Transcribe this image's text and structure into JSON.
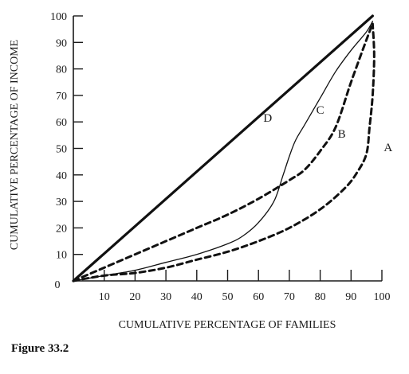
{
  "caption": "Figure 33.2",
  "chart_data": {
    "type": "line",
    "xlabel": "CUMULATIVE PERCENTAGE OF FAMILIES",
    "ylabel": "CUMULATIVE PERCENTAGE OF INCOME",
    "xlim": [
      0,
      100
    ],
    "ylim": [
      0,
      100
    ],
    "x_ticks": [
      10,
      20,
      30,
      40,
      50,
      60,
      70,
      80,
      90,
      100
    ],
    "y_ticks": [
      10,
      20,
      30,
      40,
      50,
      60,
      70,
      80,
      90,
      100
    ],
    "origin_label": "0",
    "grid": false,
    "series": [
      {
        "name": "D",
        "style": "solid-thick",
        "points": [
          [
            0,
            0
          ],
          [
            97,
            100
          ]
        ]
      },
      {
        "name": "C",
        "style": "solid-thin",
        "points": [
          [
            0,
            0
          ],
          [
            10,
            2
          ],
          [
            20,
            4
          ],
          [
            30,
            7
          ],
          [
            40,
            10
          ],
          [
            50,
            14
          ],
          [
            55,
            17
          ],
          [
            60,
            22
          ],
          [
            65,
            30
          ],
          [
            68,
            40
          ],
          [
            70,
            47
          ],
          [
            72,
            53
          ],
          [
            75,
            59
          ],
          [
            80,
            69
          ],
          [
            85,
            79
          ],
          [
            90,
            87
          ],
          [
            95,
            94
          ],
          [
            97,
            98
          ]
        ]
      },
      {
        "name": "B",
        "style": "dashed",
        "points": [
          [
            0,
            0
          ],
          [
            10,
            5
          ],
          [
            20,
            10
          ],
          [
            30,
            15
          ],
          [
            40,
            20
          ],
          [
            50,
            25
          ],
          [
            60,
            31
          ],
          [
            70,
            38
          ],
          [
            75,
            42
          ],
          [
            80,
            49
          ],
          [
            85,
            58
          ],
          [
            90,
            75
          ],
          [
            95,
            91
          ],
          [
            97,
            97
          ]
        ]
      },
      {
        "name": "A",
        "style": "dashed",
        "points": [
          [
            0,
            0
          ],
          [
            10,
            2
          ],
          [
            20,
            3
          ],
          [
            30,
            5
          ],
          [
            40,
            8
          ],
          [
            50,
            11
          ],
          [
            60,
            15
          ],
          [
            70,
            20
          ],
          [
            80,
            27
          ],
          [
            88,
            35
          ],
          [
            92,
            41
          ],
          [
            95,
            48
          ],
          [
            96,
            58
          ],
          [
            97,
            70
          ],
          [
            97.5,
            85
          ],
          [
            97,
            97
          ]
        ]
      }
    ],
    "curve_labels": [
      {
        "text": "D",
        "x": 63,
        "y": 60
      },
      {
        "text": "C",
        "x": 80,
        "y": 63
      },
      {
        "text": "B",
        "x": 87,
        "y": 54
      },
      {
        "text": "A",
        "x": 102,
        "y": 49
      }
    ]
  }
}
